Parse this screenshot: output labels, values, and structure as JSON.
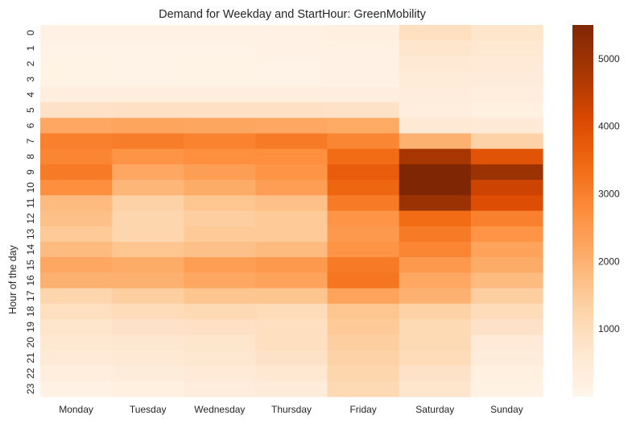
{
  "chart_data": {
    "type": "heatmap",
    "title": "Demand for Weekday and StartHour: GreenMobility",
    "xlabel": "",
    "ylabel": "Hour of the day",
    "x_categories": [
      "Monday",
      "Tuesday",
      "Wednesday",
      "Thursday",
      "Friday",
      "Saturday",
      "Sunday"
    ],
    "y_categories": [
      "0",
      "1",
      "2",
      "3",
      "4",
      "5",
      "6",
      "7",
      "8",
      "9",
      "10",
      "11",
      "12",
      "13",
      "14",
      "15",
      "16",
      "17",
      "18",
      "19",
      "20",
      "21",
      "22",
      "23"
    ],
    "values": [
      [
        150,
        170,
        160,
        200,
        260,
        900,
        700
      ],
      [
        120,
        130,
        120,
        150,
        200,
        700,
        600
      ],
      [
        110,
        120,
        110,
        130,
        170,
        550,
        500
      ],
      [
        110,
        120,
        110,
        120,
        150,
        450,
        400
      ],
      [
        300,
        320,
        310,
        320,
        300,
        350,
        300
      ],
      [
        800,
        850,
        830,
        850,
        800,
        300,
        250
      ],
      [
        2200,
        2250,
        2230,
        2200,
        2150,
        550,
        500
      ],
      [
        3000,
        3050,
        2950,
        3100,
        2900,
        2000,
        1300
      ],
      [
        2900,
        2600,
        2700,
        2700,
        3400,
        4800,
        3900
      ],
      [
        3100,
        2200,
        2400,
        2600,
        3700,
        5500,
        5000
      ],
      [
        2700,
        1900,
        2100,
        2400,
        3500,
        5500,
        4300
      ],
      [
        1800,
        1300,
        1600,
        1700,
        3100,
        5000,
        4000
      ],
      [
        1700,
        1200,
        1400,
        1500,
        2600,
        3400,
        3000
      ],
      [
        1500,
        1200,
        1500,
        1500,
        2500,
        3100,
        2600
      ],
      [
        1800,
        1600,
        1700,
        1800,
        2600,
        2900,
        2300
      ],
      [
        2200,
        2100,
        2400,
        2500,
        3100,
        2500,
        2100
      ],
      [
        2000,
        2000,
        2200,
        2300,
        3200,
        2200,
        1800
      ],
      [
        1200,
        1400,
        1600,
        1600,
        2300,
        2000,
        1400
      ],
      [
        900,
        1000,
        1100,
        1000,
        1600,
        1300,
        1000
      ],
      [
        700,
        800,
        850,
        900,
        1500,
        1100,
        800
      ],
      [
        600,
        650,
        700,
        900,
        1400,
        1100,
        500
      ],
      [
        500,
        550,
        650,
        800,
        1300,
        1000,
        400
      ],
      [
        300,
        400,
        500,
        600,
        1200,
        800,
        250
      ],
      [
        200,
        250,
        350,
        400,
        1100,
        700,
        200
      ]
    ],
    "colormap": "Oranges",
    "color_range": [
      0,
      5500
    ],
    "colorbar_ticks": [
      1000,
      2000,
      3000,
      4000,
      5000
    ],
    "colorbar_tick_labels": [
      "1000",
      "2000",
      "3000",
      "4000",
      "5000"
    ],
    "grid": false,
    "legend": "colorbar-right"
  }
}
